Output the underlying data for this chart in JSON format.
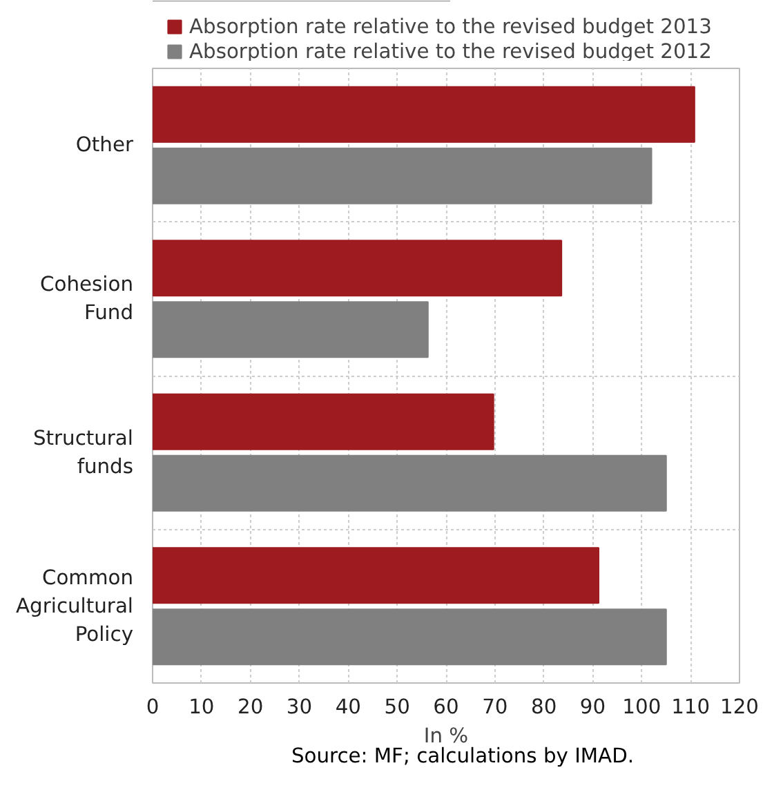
{
  "chart_data": {
    "type": "bar",
    "orientation": "horizontal",
    "categories": [
      "Other",
      "Cohesion Fund",
      "Structural funds",
      "Common Agricultural Policy"
    ],
    "series": [
      {
        "name": "Absorption rate relative to the revised budget 2013",
        "color": "#9e1b20",
        "values": [
          110.8,
          83.6,
          69.7,
          91.2
        ]
      },
      {
        "name": "Absorption rate relative to the revised budget 2012",
        "color": "#808080",
        "values": [
          102.0,
          56.3,
          105.0,
          105.0
        ]
      }
    ],
    "xlim": [
      0,
      120
    ],
    "xticks": [
      0,
      10,
      20,
      30,
      40,
      50,
      60,
      70,
      80,
      90,
      100,
      110,
      120
    ],
    "xlabel": "In %",
    "grid": true,
    "legend": "top",
    "annotations": [
      "Source: MF; calculations by IMAD."
    ]
  }
}
